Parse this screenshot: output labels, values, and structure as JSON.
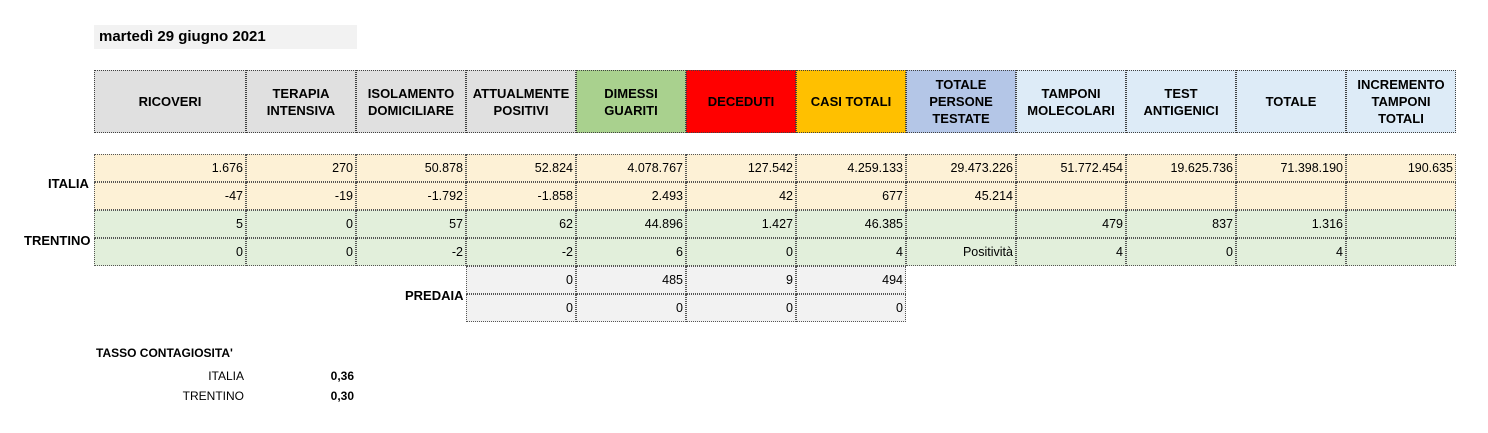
{
  "date": "martedì 29 giugno 2021",
  "headers": [
    {
      "label": "RICOVERI",
      "bg": "#e0e0e0"
    },
    {
      "label": "TERAPIA INTENSIVA",
      "bg": "#e0e0e0"
    },
    {
      "label": "ISOLAMENTO DOMICILIARE",
      "bg": "#e0e0e0"
    },
    {
      "label": "ATTUALMENTE POSITIVI",
      "bg": "#e0e0e0"
    },
    {
      "label": "DIMESSI GUARITI",
      "bg": "#a9d18e"
    },
    {
      "label": "DECEDUTI",
      "bg": "#ff0000"
    },
    {
      "label": "CASI TOTALI",
      "bg": "#ffc000"
    },
    {
      "label": "TOTALE PERSONE TESTATE",
      "bg": "#b4c6e7"
    },
    {
      "label": "TAMPONI MOLECOLARI",
      "bg": "#ddebf7"
    },
    {
      "label": "TEST ANTIGENICI",
      "bg": "#ddebf7"
    },
    {
      "label": "TOTALE",
      "bg": "#ddebf7"
    },
    {
      "label": "INCREMENTO TAMPONI TOTALI",
      "bg": "#ddebf7"
    }
  ],
  "italia": {
    "label": "ITALIA",
    "totals": [
      "1.676",
      "270",
      "50.878",
      "52.824",
      "4.078.767",
      "127.542",
      "4.259.133",
      "29.473.226",
      "51.772.454",
      "19.625.736",
      "71.398.190",
      "190.635"
    ],
    "deltas": [
      "-47",
      "-19",
      "-1.792",
      "-1.858",
      "2.493",
      "42",
      "677",
      "45.214",
      "",
      "",
      "",
      ""
    ]
  },
  "trentino": {
    "label": "TRENTINO",
    "totals": [
      "5",
      "0",
      "57",
      "62",
      "44.896",
      "1.427",
      "46.385",
      "",
      "479",
      "837",
      "1.316",
      ""
    ],
    "deltas": [
      "0",
      "0",
      "-2",
      "-2",
      "6",
      "0",
      "4",
      "Positività",
      "4",
      "0",
      "4",
      ""
    ]
  },
  "predaia": {
    "label": "PREDAIA",
    "totals": [
      "0",
      "485",
      "9",
      "494"
    ],
    "deltas": [
      "0",
      "0",
      "0",
      "0"
    ]
  },
  "tasso": {
    "title": "TASSO CONTAGIOSITA'",
    "rows": [
      {
        "label": "ITALIA",
        "value": "0,36"
      },
      {
        "label": "TRENTINO",
        "value": "0,30"
      }
    ]
  }
}
